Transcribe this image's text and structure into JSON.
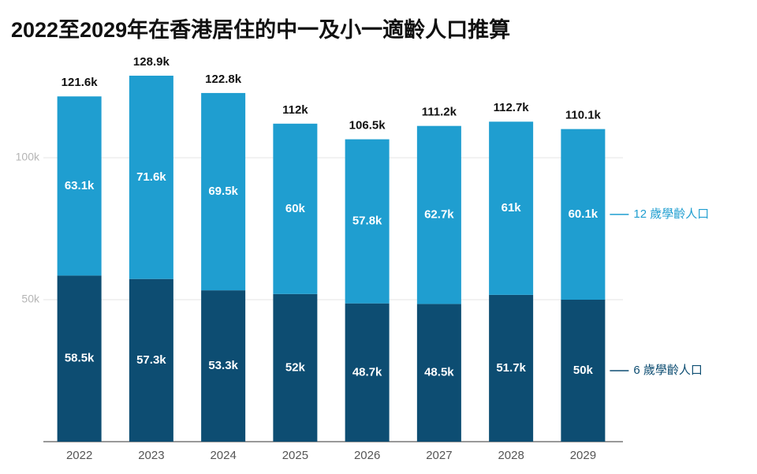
{
  "chart_data": {
    "type": "stacked_bar",
    "title": "2022至2029年在香港居住的中一及小一適齡人口推算",
    "categories": [
      "2022",
      "2023",
      "2024",
      "2025",
      "2026",
      "2027",
      "2028",
      "2029"
    ],
    "series": [
      {
        "name": "6 歲學齡人口",
        "color": "#0d4d72",
        "values": [
          58500,
          57300,
          53300,
          52000,
          48700,
          48500,
          51700,
          50000
        ],
        "value_labels": [
          "58.5k",
          "57.3k",
          "53.3k",
          "52k",
          "48.7k",
          "48.5k",
          "51.7k",
          "50k"
        ]
      },
      {
        "name": "12 歲學齡人口",
        "color": "#1f9ed0",
        "values": [
          63100,
          71600,
          69500,
          60000,
          57800,
          62700,
          61000,
          60100
        ],
        "value_labels": [
          "63.1k",
          "71.6k",
          "69.5k",
          "60k",
          "57.8k",
          "62.7k",
          "61k",
          "60.1k"
        ]
      }
    ],
    "totals": [
      121600,
      128900,
      122800,
      112000,
      106500,
      111200,
      112700,
      110100
    ],
    "total_labels": [
      "121.6k",
      "128.9k",
      "122.8k",
      "112k",
      "106.5k",
      "111.2k",
      "112.7k",
      "110.1k"
    ],
    "ylim": [
      0,
      140000
    ],
    "yticks": [
      {
        "value": 50000,
        "label": "50k"
      },
      {
        "value": 100000,
        "label": "100k"
      }
    ],
    "grid": true
  }
}
